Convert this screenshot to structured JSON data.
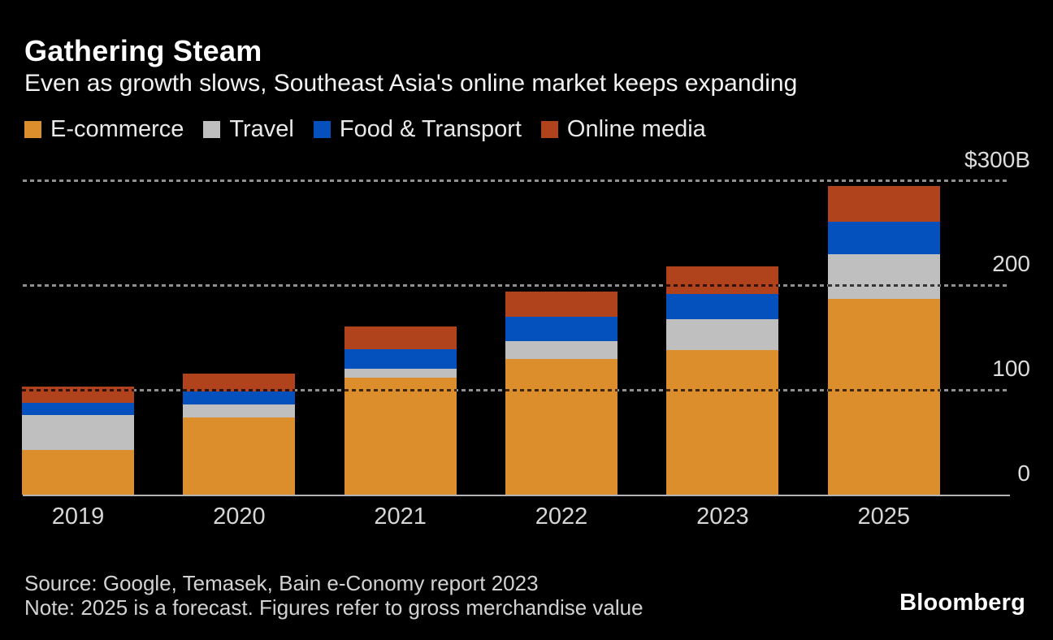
{
  "header": {
    "title": "Gathering Steam",
    "subtitle": "Even as growth slows, Southeast Asia's online market keeps expanding"
  },
  "legend": [
    {
      "label": "E-commerce",
      "color": "#dd8e2c"
    },
    {
      "label": "Travel",
      "color": "#bfbfbf"
    },
    {
      "label": "Food & Transport",
      "color": "#0451be"
    },
    {
      "label": "Online media",
      "color": "#b0421c"
    }
  ],
  "chart_data": {
    "type": "bar",
    "stacked": true,
    "title": "Gathering Steam",
    "subtitle": "Even as growth slows, Southeast Asia's online market keeps expanding",
    "unit": "$B (gross merchandise value)",
    "categories": [
      "2019",
      "2020",
      "2021",
      "2022",
      "2023",
      "2025"
    ],
    "series": [
      {
        "name": "E-commerce",
        "color": "#dd8e2c",
        "values": [
          43,
          74,
          112,
          130,
          138,
          187
        ]
      },
      {
        "name": "Travel",
        "color": "#bfbfbf",
        "values": [
          33,
          12,
          8,
          17,
          30,
          43
        ]
      },
      {
        "name": "Food & Transport",
        "color": "#0451be",
        "values": [
          12,
          13,
          19,
          23,
          24,
          31
        ]
      },
      {
        "name": "Online media",
        "color": "#b0421c",
        "values": [
          15,
          17,
          22,
          24,
          26,
          34
        ]
      }
    ],
    "totals": [
      103,
      116,
      161,
      194,
      218,
      295
    ],
    "ylim": [
      0,
      300
    ],
    "y_axis": {
      "ticks": [
        {
          "value": 0,
          "label": "0"
        },
        {
          "value": 100,
          "label": "100"
        },
        {
          "value": 200,
          "label": "200"
        },
        {
          "value": 300,
          "label": "$300B"
        }
      ],
      "gridline_values": [
        100,
        200,
        300
      ],
      "gridline_style": "dotted",
      "baseline_value": 0
    },
    "legend_position": "top"
  },
  "footer": {
    "source": "Source: Google, Temasek, Bain e-Conomy report 2023",
    "note": "Note: 2025 is a forecast. Figures refer to gross merchandise value",
    "brand": "Bloomberg"
  },
  "colors": {
    "background": "#000000",
    "title_text": "#ffffff",
    "body_text": "#e9e9e9",
    "axis_text": "#d6d6d6",
    "gridline": "#909090",
    "baseline": "#b3b3b3"
  }
}
